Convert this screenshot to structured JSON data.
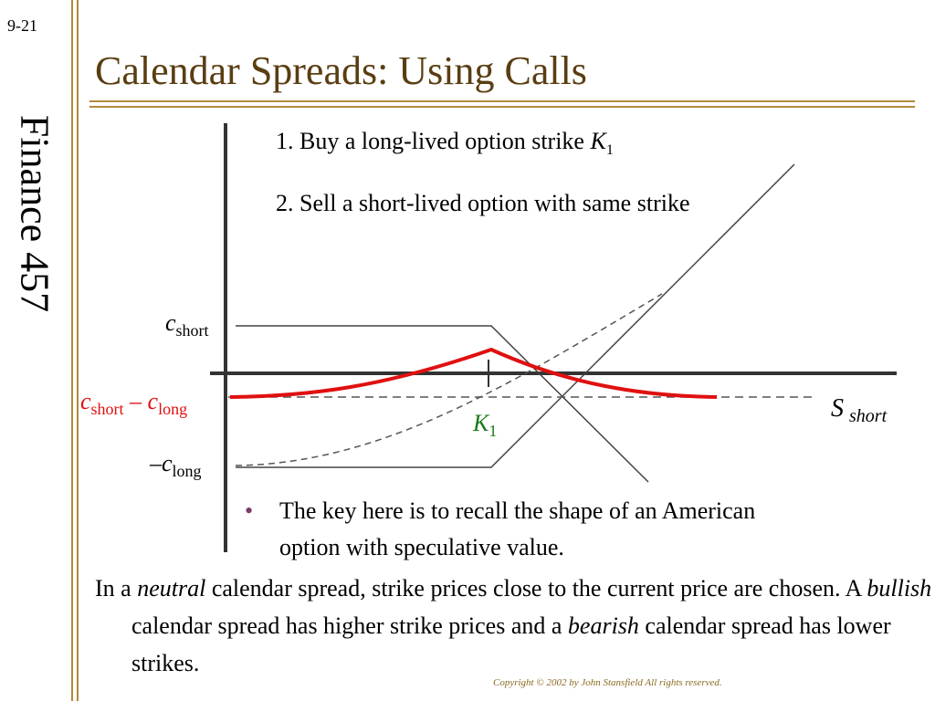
{
  "slide": {
    "number": "9-21",
    "course": "Finance 457",
    "title": "Calendar Spreads: Using Calls"
  },
  "steps": {
    "step1_text": "1. Buy a long-lived option  strike ",
    "step1_var": "K",
    "step1_sub": "1",
    "step2": "2. Sell a short-lived option  with same strike"
  },
  "diagram": {
    "y_label_short_var": "c",
    "y_label_short_sub": "short",
    "y_label_spread_var1": "c",
    "y_label_spread_sub1": "short",
    "y_label_spread_op": " – ",
    "y_label_spread_var2": "c",
    "y_label_spread_sub2": "long",
    "y_label_long_prefix": "–",
    "y_label_long_var": "c",
    "y_label_long_sub": "long",
    "x_label_var": "S",
    "x_label_sub": "short",
    "strike_var": "K",
    "strike_sub": "1",
    "colors": {
      "axis": "#333333",
      "spread": "#e01010",
      "strike_label": "#1a7a1a",
      "spread_label": "#e01010"
    }
  },
  "bullet": {
    "marker": "•",
    "text": "The key here is to recall the shape of an American option with speculative value."
  },
  "paragraph": {
    "p1": "In a ",
    "neutral": "neutral",
    "p2": " calendar spread, strike prices close to the current price are chosen. A ",
    "bullish": "bullish",
    "p3": " calendar spread has higher strike prices and a ",
    "bearish": "bearish",
    "p4": " calendar spread has lower strikes."
  },
  "copyright": "Copyright © 2002 by John Stansfield  All rights reserved."
}
